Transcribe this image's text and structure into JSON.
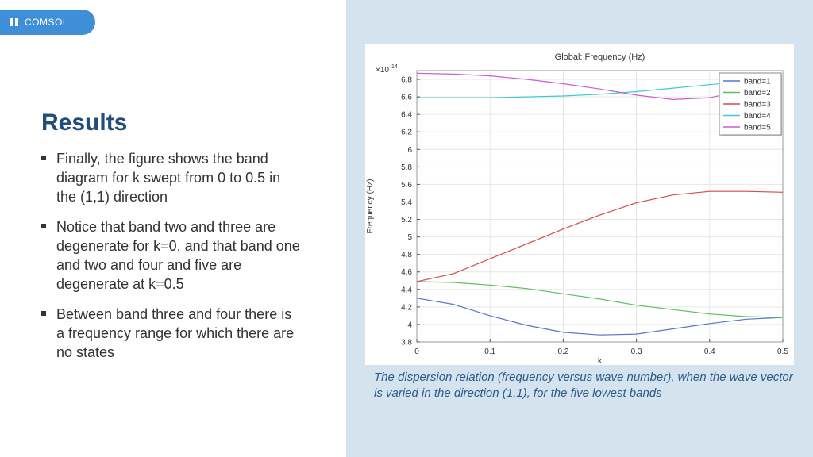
{
  "header": {
    "logo_text": "COMSOL"
  },
  "slide": {
    "title": "Results",
    "bullets": [
      "Finally, the figure shows the band diagram for k swept from 0 to 0.5 in the (1,1) direction",
      "Notice that band two and three are degenerate for k=0, and that band one and two and four and five are degenerate at k=0.5",
      "Between band three and four there is a frequency range for which there are no states"
    ],
    "caption": "The dispersion relation (frequency versus wave number), when the wave vector is varied in the direction (1,1), for the five lowest bands"
  },
  "chart_data": {
    "type": "line",
    "title": "Global: Frequency (Hz)",
    "xlabel": "k",
    "ylabel": "Frequency (Hz)",
    "y_multiplier": "×10",
    "y_exponent": "14",
    "xlim": [
      0,
      0.5
    ],
    "ylim": [
      3.8,
      6.9
    ],
    "xticks": [
      0,
      0.1,
      0.2,
      0.3,
      0.4,
      0.5
    ],
    "xtick_labels": [
      "0",
      "0.1",
      "0.2",
      "0.3",
      "0.4",
      "0.5"
    ],
    "yticks": [
      3.8,
      4,
      4.2,
      4.4,
      4.6,
      4.8,
      5,
      5.2,
      5.4,
      5.6,
      5.8,
      6,
      6.2,
      6.4,
      6.6,
      6.8
    ],
    "ytick_labels": [
      "3.8",
      "4",
      "4.2",
      "4.4",
      "4.6",
      "4.8",
      "5",
      "5.2",
      "5.4",
      "5.6",
      "5.8",
      "6",
      "6.2",
      "6.4",
      "6.6",
      "6.8"
    ],
    "grid": true,
    "legend_position": "top-right",
    "x": [
      0,
      0.05,
      0.1,
      0.15,
      0.2,
      0.25,
      0.3,
      0.35,
      0.4,
      0.45,
      0.5
    ],
    "series": [
      {
        "name": "band=1",
        "color": "#5577c8",
        "values": [
          4.3,
          4.23,
          4.1,
          3.99,
          3.91,
          3.88,
          3.89,
          3.95,
          4.01,
          4.06,
          4.08
        ]
      },
      {
        "name": "band=2",
        "color": "#5cbf5c",
        "values": [
          4.49,
          4.48,
          4.45,
          4.41,
          4.35,
          4.29,
          4.22,
          4.17,
          4.12,
          4.09,
          4.08
        ]
      },
      {
        "name": "band=3",
        "color": "#d84a4a",
        "values": [
          4.49,
          4.58,
          4.75,
          4.92,
          5.09,
          5.25,
          5.39,
          5.48,
          5.52,
          5.52,
          5.51
        ]
      },
      {
        "name": "band=4",
        "color": "#3ccbd6",
        "values": [
          6.59,
          6.59,
          6.59,
          6.6,
          6.61,
          6.63,
          6.66,
          6.7,
          6.74,
          6.78,
          6.8
        ]
      },
      {
        "name": "band=5",
        "color": "#c95cd0",
        "values": [
          6.87,
          6.86,
          6.84,
          6.8,
          6.75,
          6.69,
          6.62,
          6.57,
          6.59,
          6.68,
          6.8
        ]
      }
    ]
  }
}
